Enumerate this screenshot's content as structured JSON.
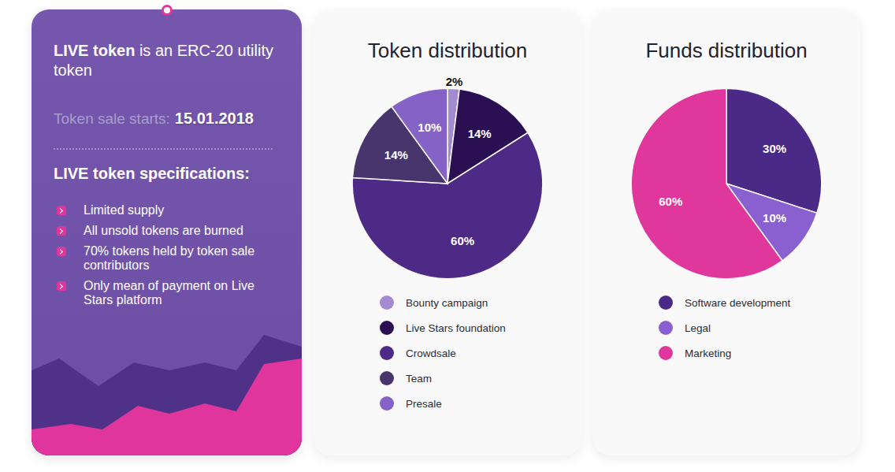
{
  "info_panel": {
    "title_bold": "LIVE token",
    "title_rest": "is an ERC-20 utility token",
    "sale_label": "Token sale starts:",
    "sale_date": "15.01.2018",
    "specs_title": "LIVE token specifications:",
    "specs": [
      "Limited supply",
      "All unsold tokens are burned",
      "70% tokens held by token sale contributors",
      "Only mean of payment on Live Stars platform"
    ]
  },
  "chart_data": [
    {
      "type": "pie",
      "title": "Token distribution",
      "categories": [
        "Bounty campaign",
        "Live Stars foundation",
        "Crowdsale",
        "Team",
        "Presale"
      ],
      "values": [
        2,
        14,
        60,
        14,
        10
      ],
      "value_labels": [
        "2%",
        "14%",
        "60%",
        "14%",
        "10%"
      ],
      "colors": [
        "#a48bcf",
        "#2a0f52",
        "#4c2a86",
        "#47356b",
        "#8562c5"
      ],
      "data_labels": true,
      "legend": "bottom"
    },
    {
      "type": "pie",
      "title": "Funds distribution",
      "categories": [
        "Software development",
        "Legal",
        "Marketing"
      ],
      "values": [
        30,
        10,
        60
      ],
      "value_labels": [
        "30%",
        "10%",
        "60%"
      ],
      "colors": [
        "#4b2a87",
        "#8a60d0",
        "#e0379d"
      ],
      "data_labels": true,
      "legend": "bottom"
    }
  ]
}
